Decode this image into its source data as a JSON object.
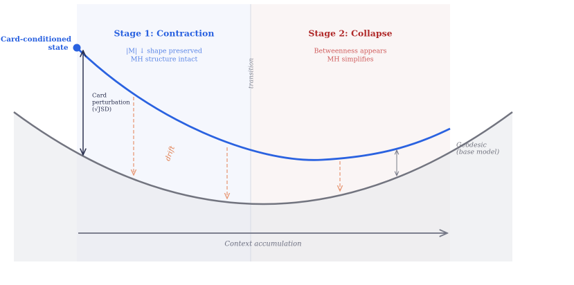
{
  "state_label": {
    "line1": "Card-conditioned",
    "line2": "state"
  },
  "stage1": {
    "title": "Stage 1: Contraction",
    "note1": "|M| ↓  shape preserved",
    "note2": "MH structure intact"
  },
  "stage2": {
    "title": "Stage 2: Collapse",
    "note1": "Betweenness appears",
    "note2": "MH simplifies"
  },
  "transition": "transition",
  "perturbation": {
    "line1": "Card",
    "line2": "perturbation",
    "line3": "(√JSD)"
  },
  "drift": "drift",
  "geodesic": {
    "line1": "Geodesic",
    "line2": "(base model)"
  },
  "x_axis": "Context accumulation"
}
